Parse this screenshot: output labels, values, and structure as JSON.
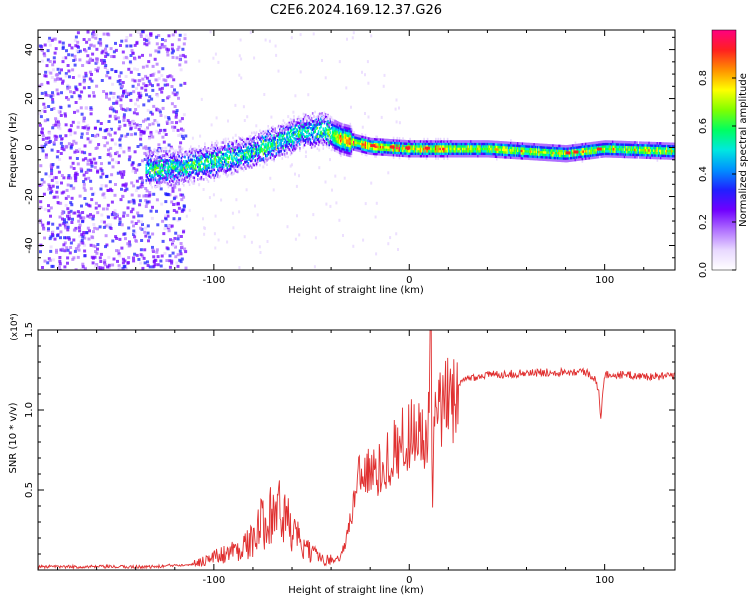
{
  "title": "C2E6.2024.169.12.37.G26",
  "chart_data": [
    {
      "type": "heatmap",
      "xlabel": "Height of straight line (km)",
      "ylabel": "Frequency (Hz)",
      "xlim": [
        -190,
        136
      ],
      "ylim": [
        -50,
        48
      ],
      "xticks": [
        -100,
        0,
        100
      ],
      "yticks": [
        -40,
        -20,
        0,
        20,
        40
      ],
      "colorbar": {
        "label": "Normalized spectral amplitude",
        "range": [
          0,
          1
        ],
        "ticks": [
          0.0,
          0.2,
          0.4,
          0.6,
          0.8
        ],
        "colors": [
          "#ffffff",
          "#e8d8ff",
          "#b070ff",
          "#7000ff",
          "#2020ff",
          "#0090ff",
          "#00e8e0",
          "#00ff60",
          "#80ff00",
          "#ffff00",
          "#ff9000",
          "#ff2020",
          "#ff0080"
        ]
      },
      "ridge": [
        {
          "x": -130,
          "f": -8
        },
        {
          "x": -115,
          "f": -7
        },
        {
          "x": -100,
          "f": -5
        },
        {
          "x": -85,
          "f": -2
        },
        {
          "x": -70,
          "f": 2
        },
        {
          "x": -55,
          "f": 7
        },
        {
          "x": -45,
          "f": 8
        },
        {
          "x": -35,
          "f": 4
        },
        {
          "x": -20,
          "f": 1
        },
        {
          "x": 0,
          "f": 0
        },
        {
          "x": 40,
          "f": 0
        },
        {
          "x": 80,
          "f": -2
        },
        {
          "x": 100,
          "f": 0
        },
        {
          "x": 136,
          "f": -1
        }
      ]
    },
    {
      "type": "line",
      "xlabel": "Height of straight line (km)",
      "ylabel": "SNR (10 * v/v)",
      "scale_label": "(x10⁴)",
      "xlim": [
        -190,
        136
      ],
      "ylim": [
        0,
        1.5
      ],
      "xticks": [
        -100,
        0,
        100
      ],
      "yticks": [
        0.5,
        1.0,
        1.5
      ],
      "ytick_labels": [
        "0.5",
        "1.0",
        "1.5"
      ],
      "color": "#e03030",
      "series": [
        {
          "name": "SNR",
          "x": [
            -190,
            -160,
            -130,
            -110,
            -100,
            -90,
            -80,
            -75,
            -70,
            -65,
            -60,
            -55,
            -50,
            -40,
            -35,
            -30,
            -27,
            -25,
            -20,
            -15,
            -10,
            -5,
            0,
            5,
            8,
            10,
            11,
            12,
            13,
            15,
            20,
            25,
            30,
            40,
            60,
            80,
            90,
            95,
            97,
            98,
            100,
            110,
            120,
            136
          ],
          "y": [
            0.02,
            0.02,
            0.02,
            0.04,
            0.08,
            0.12,
            0.18,
            0.3,
            0.4,
            0.35,
            0.25,
            0.15,
            0.1,
            0.06,
            0.08,
            0.3,
            0.55,
            0.65,
            0.6,
            0.62,
            0.72,
            0.78,
            0.85,
            0.92,
            0.7,
            1.0,
            1.5,
            0.4,
            0.95,
            0.98,
            1.05,
            1.15,
            1.2,
            1.22,
            1.23,
            1.24,
            1.24,
            1.2,
            1.1,
            0.96,
            1.22,
            1.22,
            1.21,
            1.21
          ]
        }
      ]
    }
  ]
}
